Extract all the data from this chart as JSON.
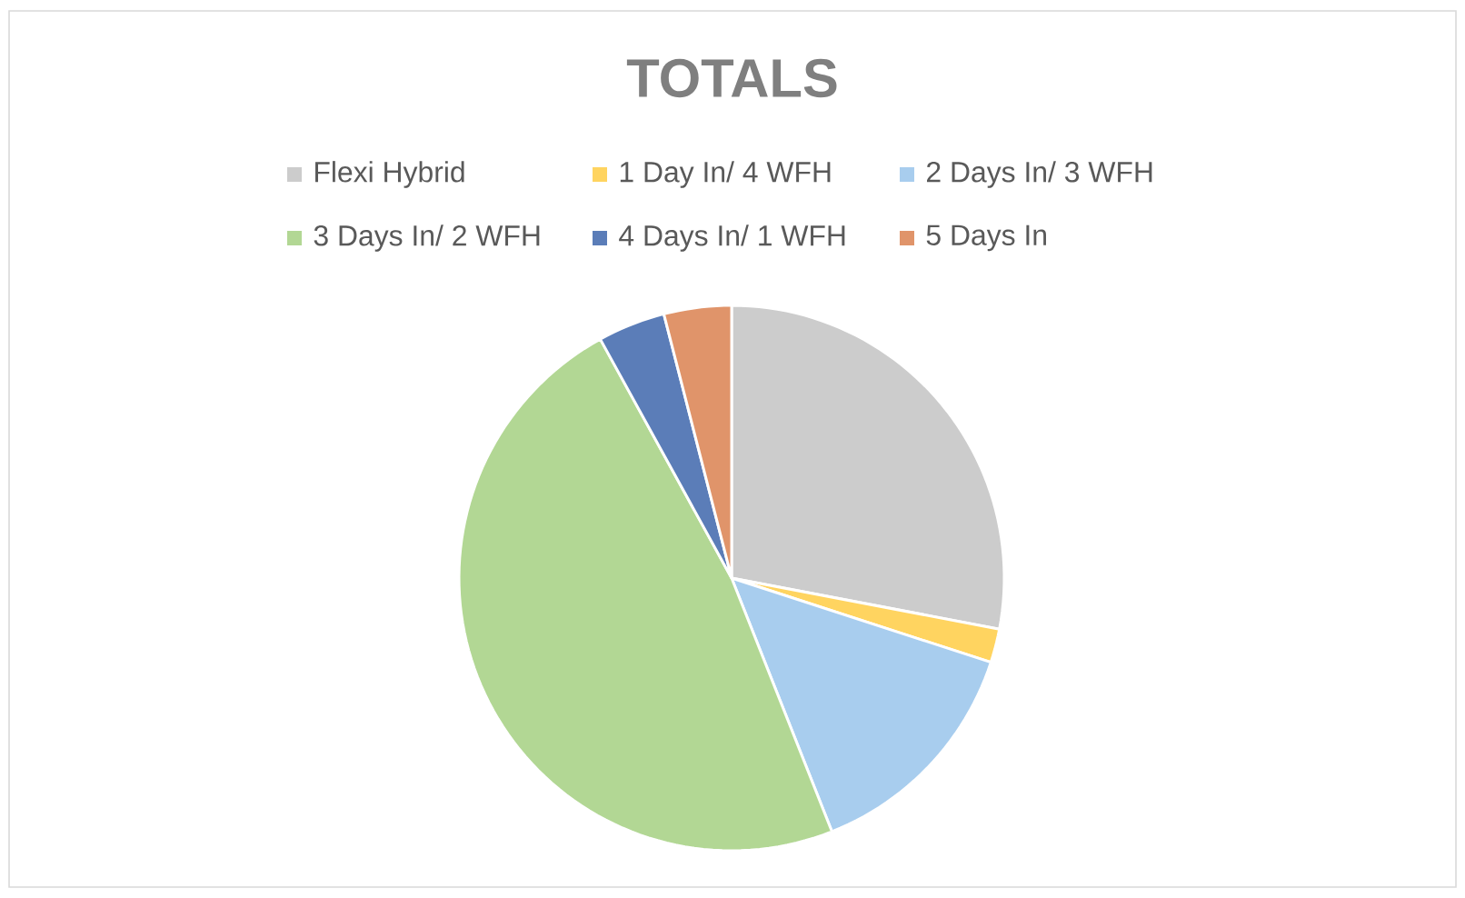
{
  "chart_data": {
    "type": "pie",
    "title": "TOTALS",
    "categories": [
      "Flexi Hybrid",
      "1 Day In/ 4 WFH",
      "2 Days In/ 3 WFH",
      "3 Days In/ 2 WFH",
      "4 Days In/ 1 WFH",
      "5 Days In"
    ],
    "values": [
      28,
      2,
      14,
      48,
      4,
      4
    ],
    "colors": [
      "#cccccc",
      "#ffd460",
      "#a8cdee",
      "#b2d794",
      "#5b7db8",
      "#e0946a"
    ],
    "legend": "top"
  }
}
